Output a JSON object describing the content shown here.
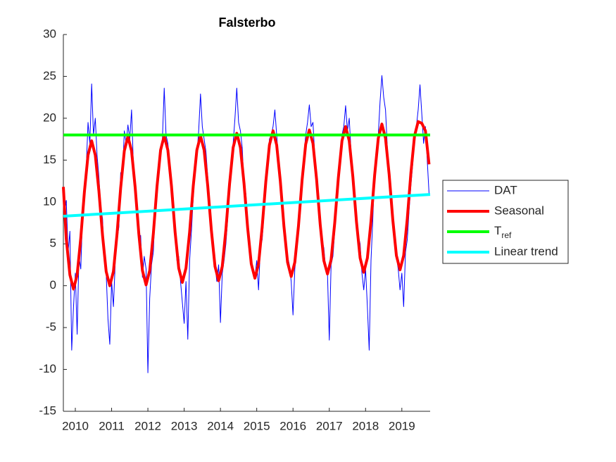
{
  "chart_data": {
    "type": "line",
    "title": "Falsterbo",
    "xlim": [
      2009.67,
      2019.78
    ],
    "xticks": [
      2010,
      2011,
      2012,
      2013,
      2014,
      2015,
      2016,
      2017,
      2018,
      2019
    ],
    "ylim": [
      -15,
      30
    ],
    "yticks": [
      -15,
      -10,
      -5,
      0,
      5,
      10,
      15,
      20,
      25,
      30
    ],
    "legend": "right",
    "series": [
      {
        "name": "DAT",
        "color": "#0000ff",
        "width": 1,
        "x": [
          2009.7,
          2009.75,
          2009.8,
          2009.85,
          2009.9,
          2009.95,
          2010.0,
          2010.05,
          2010.1,
          2010.15,
          2010.2,
          2010.25,
          2010.3,
          2010.35,
          2010.4,
          2010.45,
          2010.5,
          2010.55,
          2010.6,
          2010.65,
          2010.7,
          2010.75,
          2010.8,
          2010.85,
          2010.9,
          2010.95,
          2011.0,
          2011.05,
          2011.1,
          2011.15,
          2011.2,
          2011.25,
          2011.3,
          2011.35,
          2011.4,
          2011.45,
          2011.5,
          2011.55,
          2011.6,
          2011.65,
          2011.7,
          2011.75,
          2011.8,
          2011.85,
          2011.9,
          2011.95,
          2012.0,
          2012.05,
          2012.1,
          2012.15,
          2012.2,
          2012.25,
          2012.3,
          2012.35,
          2012.4,
          2012.45,
          2012.5,
          2012.55,
          2012.6,
          2012.65,
          2012.7,
          2012.75,
          2012.8,
          2012.85,
          2012.9,
          2012.95,
          2013.0,
          2013.05,
          2013.1,
          2013.15,
          2013.2,
          2013.25,
          2013.3,
          2013.35,
          2013.4,
          2013.45,
          2013.5,
          2013.55,
          2013.6,
          2013.65,
          2013.7,
          2013.75,
          2013.8,
          2013.85,
          2013.9,
          2013.95,
          2014.0,
          2014.05,
          2014.1,
          2014.15,
          2014.2,
          2014.25,
          2014.3,
          2014.35,
          2014.4,
          2014.45,
          2014.5,
          2014.55,
          2014.6,
          2014.65,
          2014.7,
          2014.75,
          2014.8,
          2014.85,
          2014.9,
          2014.95,
          2015.0,
          2015.05,
          2015.1,
          2015.15,
          2015.2,
          2015.25,
          2015.3,
          2015.35,
          2015.4,
          2015.45,
          2015.5,
          2015.55,
          2015.6,
          2015.65,
          2015.7,
          2015.75,
          2015.8,
          2015.85,
          2015.9,
          2015.95,
          2016.0,
          2016.05,
          2016.1,
          2016.15,
          2016.2,
          2016.25,
          2016.3,
          2016.35,
          2016.4,
          2016.45,
          2016.5,
          2016.55,
          2016.6,
          2016.65,
          2016.7,
          2016.75,
          2016.8,
          2016.85,
          2016.9,
          2016.95,
          2017.0,
          2017.05,
          2017.1,
          2017.15,
          2017.2,
          2017.25,
          2017.3,
          2017.35,
          2017.4,
          2017.45,
          2017.5,
          2017.55,
          2017.6,
          2017.65,
          2017.7,
          2017.75,
          2017.8,
          2017.85,
          2017.9,
          2017.95,
          2018.0,
          2018.05,
          2018.1,
          2018.15,
          2018.2,
          2018.25,
          2018.3,
          2018.35,
          2018.4,
          2018.45,
          2018.5,
          2018.55,
          2018.6,
          2018.65,
          2018.7,
          2018.75,
          2018.8,
          2018.85,
          2018.9,
          2018.95,
          2019.0,
          2019.05,
          2019.1,
          2019.15,
          2019.2,
          2019.25,
          2019.3,
          2019.35,
          2019.4,
          2019.45,
          2019.5,
          2019.55,
          2019.6,
          2019.65,
          2019.7,
          2019.75
        ],
        "values": [
          8.5,
          10.2,
          4.0,
          6.5,
          -7.7,
          -2.5,
          1.5,
          -5.8,
          3.5,
          2.0,
          8.5,
          10.5,
          14.0,
          19.5,
          17.0,
          24.1,
          18.0,
          20.0,
          15.5,
          13.0,
          9.5,
          8.0,
          3.0,
          1.5,
          -4.0,
          -7.0,
          0.5,
          -2.5,
          2.8,
          5.5,
          7.0,
          13.5,
          13.0,
          18.5,
          17.0,
          19.2,
          17.5,
          21.0,
          14.5,
          12.0,
          10.0,
          5.5,
          6.0,
          1.0,
          3.5,
          2.0,
          -10.4,
          -1.5,
          2.5,
          4.0,
          9.0,
          12.0,
          15.0,
          16.0,
          17.5,
          23.6,
          18.0,
          17.0,
          15.0,
          11.5,
          10.5,
          6.5,
          3.0,
          3.5,
          0.5,
          -2.0,
          -4.5,
          0.5,
          -6.4,
          3.0,
          6.5,
          10.5,
          14.0,
          15.5,
          18.5,
          22.9,
          19.0,
          17.5,
          16.0,
          13.0,
          9.5,
          7.5,
          4.0,
          2.5,
          0.5,
          2.5,
          -4.4,
          1.5,
          3.0,
          5.0,
          8.0,
          12.5,
          15.0,
          17.0,
          20.0,
          23.6,
          19.5,
          18.5,
          16.5,
          12.0,
          11.0,
          8.0,
          5.5,
          3.0,
          2.0,
          1.0,
          3.0,
          -0.5,
          4.5,
          5.5,
          8.5,
          12.0,
          14.5,
          17.5,
          18.0,
          19.0,
          21.0,
          18.0,
          15.0,
          12.5,
          10.0,
          7.0,
          5.0,
          3.5,
          2.5,
          0.5,
          -3.5,
          2.0,
          4.0,
          7.0,
          9.0,
          13.0,
          15.5,
          18.0,
          19.5,
          21.6,
          19.0,
          19.5,
          15.5,
          13.0,
          11.0,
          8.0,
          5.5,
          4.5,
          2.0,
          1.5,
          -6.5,
          2.5,
          3.5,
          6.5,
          10.0,
          13.0,
          15.0,
          18.0,
          19.0,
          21.5,
          18.5,
          20.0,
          16.0,
          13.5,
          11.0,
          8.5,
          6.0,
          5.0,
          1.5,
          -0.5,
          2.0,
          -2.5,
          -7.7,
          3.0,
          8.0,
          13.5,
          16.0,
          18.0,
          22.0,
          25.1,
          22.5,
          21.0,
          16.5,
          14.0,
          10.0,
          7.5,
          6.0,
          3.5,
          2.0,
          -0.5,
          1.5,
          -2.5,
          4.0,
          5.5,
          9.0,
          12.0,
          14.5,
          17.5,
          19.0,
          21.0,
          24.0,
          20.5,
          17.0,
          19.0,
          15.0,
          11.0
        ]
      },
      {
        "name": "Seasonal",
        "color": "#ff0000",
        "width": 4,
        "x": [
          2009.67,
          2009.75,
          2009.85,
          2009.95,
          2010.05,
          2010.15,
          2010.25,
          2010.35,
          2010.45,
          2010.55,
          2010.65,
          2010.75,
          2010.85,
          2010.95,
          2011.05,
          2011.15,
          2011.25,
          2011.35,
          2011.45,
          2011.55,
          2011.65,
          2011.75,
          2011.85,
          2011.95,
          2012.05,
          2012.15,
          2012.25,
          2012.35,
          2012.45,
          2012.55,
          2012.65,
          2012.75,
          2012.85,
          2012.95,
          2013.05,
          2013.15,
          2013.25,
          2013.35,
          2013.45,
          2013.55,
          2013.65,
          2013.75,
          2013.85,
          2013.95,
          2014.05,
          2014.15,
          2014.25,
          2014.35,
          2014.45,
          2014.55,
          2014.65,
          2014.75,
          2014.85,
          2014.95,
          2015.05,
          2015.15,
          2015.25,
          2015.35,
          2015.45,
          2015.55,
          2015.65,
          2015.75,
          2015.85,
          2015.95,
          2016.05,
          2016.15,
          2016.25,
          2016.35,
          2016.45,
          2016.55,
          2016.65,
          2016.75,
          2016.85,
          2016.95,
          2017.05,
          2017.15,
          2017.25,
          2017.35,
          2017.45,
          2017.55,
          2017.65,
          2017.75,
          2017.85,
          2017.95,
          2018.05,
          2018.15,
          2018.25,
          2018.35,
          2018.45,
          2018.55,
          2018.65,
          2018.75,
          2018.85,
          2018.95,
          2019.05,
          2019.15,
          2019.25,
          2019.35,
          2019.45,
          2019.55,
          2019.65,
          2019.75
        ],
        "values": [
          11.8,
          5.6,
          1.3,
          -0.4,
          1.3,
          5.7,
          11.2,
          15.6,
          17.3,
          15.6,
          11.3,
          6.0,
          1.7,
          0.0,
          1.7,
          6.2,
          11.7,
          16.1,
          17.8,
          16.1,
          11.7,
          6.2,
          1.8,
          0.1,
          1.8,
          6.2,
          11.8,
          16.2,
          17.9,
          16.2,
          11.9,
          6.4,
          2.1,
          0.4,
          2.1,
          6.4,
          11.9,
          16.2,
          17.9,
          16.2,
          11.9,
          6.6,
          2.3,
          0.6,
          2.3,
          6.7,
          12.1,
          16.5,
          18.2,
          16.5,
          12.2,
          6.9,
          2.6,
          0.9,
          2.6,
          7.0,
          12.4,
          16.8,
          18.5,
          16.8,
          12.5,
          7.1,
          2.8,
          1.1,
          2.8,
          7.1,
          12.6,
          16.9,
          18.6,
          17.0,
          12.7,
          7.3,
          3.0,
          1.4,
          3.1,
          7.5,
          12.9,
          17.3,
          19.0,
          17.3,
          13.0,
          7.6,
          3.3,
          1.6,
          3.3,
          7.7,
          13.2,
          17.6,
          19.3,
          17.6,
          13.3,
          7.9,
          3.6,
          1.9,
          3.6,
          8.0,
          13.5,
          17.9,
          19.6,
          19.4,
          18.5,
          14.5
        ]
      },
      {
        "name": "T_ref",
        "color": "#00ff00",
        "width": 4,
        "x": [
          2009.67,
          2019.78
        ],
        "values": [
          18,
          18
        ]
      },
      {
        "name": "Linear trend",
        "color": "#00ffff",
        "width": 4,
        "x": [
          2009.67,
          2019.78
        ],
        "values": [
          8.3,
          10.9
        ]
      }
    ]
  }
}
